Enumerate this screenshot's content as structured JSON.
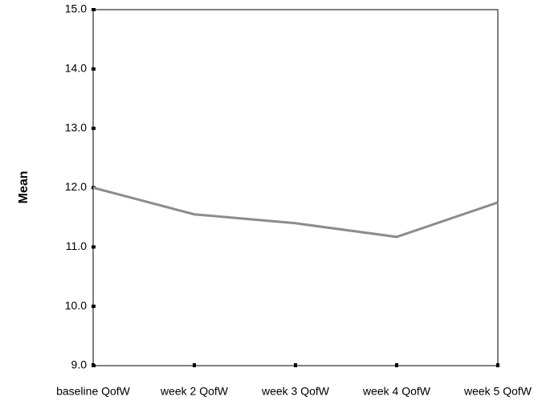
{
  "chart_data": {
    "type": "line",
    "y_label": "Mean",
    "categories": [
      "baseline QofW",
      "week 2 QofW",
      "week 3 QofW",
      "week 4 QofW",
      "week 5 QofW"
    ],
    "values": [
      12.0,
      11.55,
      11.4,
      11.17,
      11.75
    ],
    "color": "#8c8c8c",
    "ylim": [
      9,
      15
    ],
    "yticks": [
      {
        "value": 9,
        "label": "9.0"
      },
      {
        "value": 10,
        "label": "10.0"
      },
      {
        "value": 11,
        "label": "11.0"
      },
      {
        "value": 12,
        "label": "12.0"
      },
      {
        "value": 13,
        "label": "13.0"
      },
      {
        "value": 14,
        "label": "14.0"
      },
      {
        "value": 15,
        "label": "15.0"
      }
    ]
  }
}
